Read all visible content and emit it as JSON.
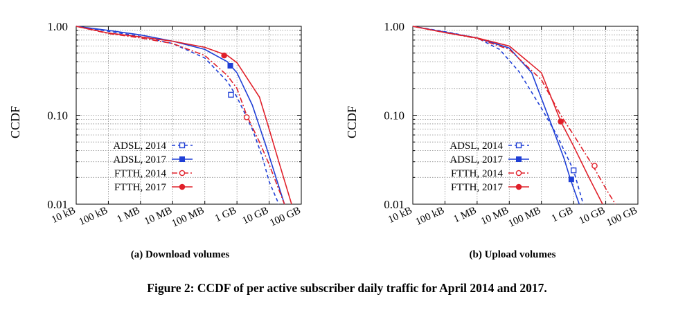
{
  "figure_caption": "Figure 2: CCDF of per active subscriber daily traffic for April 2014 and 2017.",
  "chart_data": [
    {
      "type": "line",
      "subcaption": "(a) Download volumes",
      "ylabel": "CCDF",
      "xscale": "log",
      "yscale": "log",
      "xlim_bytes": [
        10000,
        100000000000
      ],
      "ylim": [
        0.01,
        1.0
      ],
      "x_tick_labels": [
        "10 kB",
        "100 kB",
        "1 MB",
        "10 MB",
        "100 MB",
        "1 GB",
        "10 GB",
        "100 GB"
      ],
      "y_tick_labels": [
        "0.01",
        "0.10",
        "1.00"
      ],
      "grid": true,
      "legend_position": "bottom-left",
      "series": [
        {
          "name": "ADSL, 2014",
          "color": "#1f3fd6",
          "dash": "short-dash",
          "marker": "open-square",
          "x_bytes": [
            10000,
            100000,
            1000000,
            10000000,
            100000000,
            500000000,
            1000000000,
            3000000000,
            6000000000,
            10000000000,
            20000000000
          ],
          "y": [
            1.0,
            0.88,
            0.77,
            0.64,
            0.44,
            0.24,
            0.16,
            0.07,
            0.035,
            0.018,
            0.01
          ],
          "marker_x_bytes": 650000000,
          "marker_y": 0.17
        },
        {
          "name": "ADSL, 2017",
          "color": "#1f3fd6",
          "dash": "solid",
          "marker": "filled-square",
          "x_bytes": [
            10000,
            100000,
            1000000,
            10000000,
            100000000,
            500000000,
            1000000000,
            3000000000,
            8000000000,
            15000000000,
            30000000000
          ],
          "y": [
            1.0,
            0.9,
            0.8,
            0.68,
            0.55,
            0.4,
            0.3,
            0.13,
            0.045,
            0.022,
            0.01
          ],
          "marker_x_bytes": 620000000,
          "marker_y": 0.36
        },
        {
          "name": "FTTH, 2014",
          "color": "#e0202a",
          "dash": "dash-dot",
          "marker": "open-circle",
          "x_bytes": [
            10000,
            100000,
            1000000,
            10000000,
            100000000,
            500000000,
            1000000000,
            2000000000,
            5000000000,
            10000000000,
            30000000000
          ],
          "y": [
            1.0,
            0.83,
            0.74,
            0.64,
            0.47,
            0.28,
            0.2,
            0.1,
            0.05,
            0.028,
            0.01
          ],
          "marker_x_bytes": 2000000000,
          "marker_y": 0.095
        },
        {
          "name": "FTTH, 2017",
          "color": "#e0202a",
          "dash": "solid",
          "marker": "filled-circle",
          "x_bytes": [
            10000,
            100000,
            1000000,
            10000000,
            100000000,
            500000000,
            1000000000,
            5000000000,
            10000000000,
            20000000000,
            50000000000
          ],
          "y": [
            1.0,
            0.84,
            0.76,
            0.68,
            0.58,
            0.47,
            0.39,
            0.16,
            0.07,
            0.03,
            0.01
          ],
          "marker_x_bytes": 400000000,
          "marker_y": 0.47
        }
      ]
    },
    {
      "type": "line",
      "subcaption": "(b) Upload volumes",
      "ylabel": "CCDF",
      "xscale": "log",
      "yscale": "log",
      "xlim_bytes": [
        10000,
        100000000000
      ],
      "ylim": [
        0.01,
        1.0
      ],
      "x_tick_labels": [
        "10 kB",
        "100 kB",
        "1 MB",
        "10 MB",
        "100 MB",
        "1 GB",
        "10 GB",
        "100 GB"
      ],
      "y_tick_labels": [
        "0.01",
        "0.10",
        "1.00"
      ],
      "grid": true,
      "legend_position": "bottom-left",
      "series": [
        {
          "name": "ADSL, 2014",
          "color": "#1f3fd6",
          "dash": "short-dash",
          "marker": "open-square",
          "x_bytes": [
            10000,
            100000,
            1000000,
            5000000,
            20000000,
            100000000,
            300000000,
            1000000000,
            2000000000
          ],
          "y": [
            1.0,
            0.87,
            0.74,
            0.55,
            0.31,
            0.12,
            0.06,
            0.024,
            0.01
          ],
          "marker_x_bytes": 1000000000,
          "marker_y": 0.024
        },
        {
          "name": "ADSL, 2017",
          "color": "#1f3fd6",
          "dash": "solid",
          "marker": "filled-square",
          "x_bytes": [
            10000,
            100000,
            1000000,
            10000000,
            50000000,
            200000000,
            500000000,
            800000000,
            1500000000
          ],
          "y": [
            1.0,
            0.86,
            0.74,
            0.57,
            0.3,
            0.08,
            0.033,
            0.019,
            0.01
          ],
          "marker_x_bytes": 850000000,
          "marker_y": 0.019
        },
        {
          "name": "FTTH, 2014",
          "color": "#e0202a",
          "dash": "dash-dot",
          "marker": "open-circle",
          "x_bytes": [
            10000,
            100000,
            1000000,
            10000000,
            100000000,
            400000000,
            1000000000,
            4000000000,
            10000000000,
            20000000000
          ],
          "y": [
            1.0,
            0.85,
            0.73,
            0.55,
            0.25,
            0.1,
            0.06,
            0.027,
            0.015,
            0.01
          ],
          "marker_x_bytes": 4500000000,
          "marker_y": 0.027
        },
        {
          "name": "FTTH, 2017",
          "color": "#e0202a",
          "dash": "solid",
          "marker": "filled-circle",
          "x_bytes": [
            10000,
            100000,
            1000000,
            10000000,
            100000000,
            400000000,
            1000000000,
            3000000000,
            8000000000
          ],
          "y": [
            1.0,
            0.85,
            0.74,
            0.6,
            0.3,
            0.085,
            0.045,
            0.02,
            0.01
          ],
          "marker_x_bytes": 400000000,
          "marker_y": 0.085
        }
      ]
    }
  ]
}
